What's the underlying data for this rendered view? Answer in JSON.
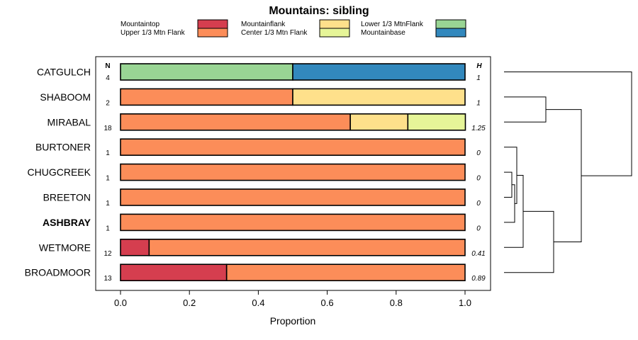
{
  "chart_data": {
    "type": "bar",
    "orientation": "horizontal-stacked",
    "title": "Mountains: sibling",
    "xlabel": "Proportion",
    "xlim": [
      0,
      1
    ],
    "xticks": [
      "0.0",
      "0.2",
      "0.4",
      "0.6",
      "0.8",
      "1.0"
    ],
    "n_header": "N",
    "h_header": "H",
    "highlight": "ASHBRAY",
    "series": [
      {
        "name": "Mountaintop",
        "color": "#d53e4f"
      },
      {
        "name": "Upper 1/3 Mtn Flank",
        "color": "#fc8d59"
      },
      {
        "name": "Mountainflank",
        "color": "#fee08b"
      },
      {
        "name": "Center 1/3 Mtn Flank",
        "color": "#e6f598"
      },
      {
        "name": "Lower 1/3 MtnFlank",
        "color": "#99d594"
      },
      {
        "name": "Mountainbase",
        "color": "#3288bd"
      }
    ],
    "rows": [
      {
        "label": "CATGULCH",
        "n": "4",
        "h": "1",
        "values": [
          0,
          0,
          0,
          0,
          0.5,
          0.5
        ]
      },
      {
        "label": "SHABOOM",
        "n": "2",
        "h": "1",
        "values": [
          0,
          0.5,
          0.5,
          0,
          0,
          0
        ]
      },
      {
        "label": "MIRABAL",
        "n": "18",
        "h": "1.25",
        "values": [
          0,
          0.667,
          0.167,
          0.167,
          0,
          0
        ]
      },
      {
        "label": "BURTONER",
        "n": "1",
        "h": "0",
        "values": [
          0,
          1,
          0,
          0,
          0,
          0
        ]
      },
      {
        "label": "CHUGCREEK",
        "n": "1",
        "h": "0",
        "values": [
          0,
          1,
          0,
          0,
          0,
          0
        ]
      },
      {
        "label": "BREETON",
        "n": "1",
        "h": "0",
        "values": [
          0,
          1,
          0,
          0,
          0,
          0
        ]
      },
      {
        "label": "ASHBRAY",
        "n": "1",
        "h": "0",
        "values": [
          0,
          1,
          0,
          0,
          0,
          0
        ]
      },
      {
        "label": "WETMORE",
        "n": "12",
        "h": "0.41",
        "values": [
          0.083,
          0.917,
          0,
          0,
          0,
          0
        ]
      },
      {
        "label": "BROADMOOR",
        "n": "13",
        "h": "0.89",
        "values": [
          0.308,
          0.692,
          0,
          0,
          0,
          0
        ]
      }
    ]
  }
}
